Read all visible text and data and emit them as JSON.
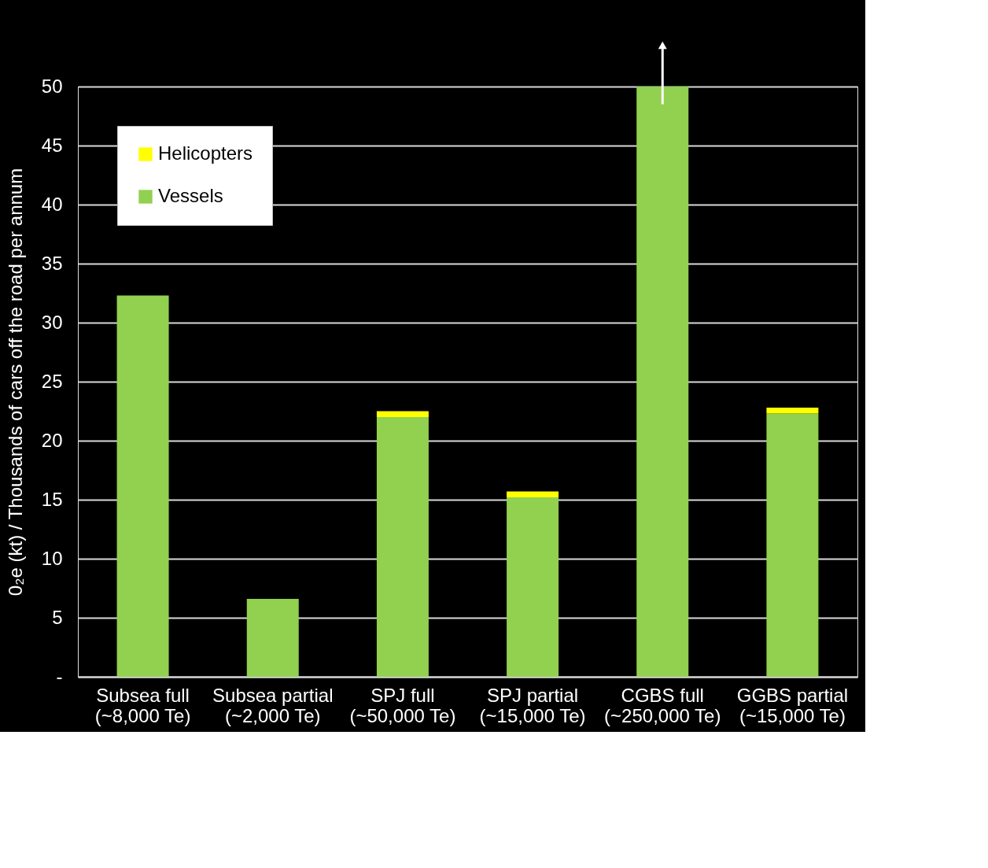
{
  "chart_data": {
    "type": "bar",
    "stacked": true,
    "ylabel": "0₂e (kt) / Thousands of cars off the road per annum",
    "categories": [
      "Subsea full\n(~8,000 Te)",
      "Subsea partial\n(~2,000 Te)",
      "SPJ full\n(~50,000 Te)",
      "SPJ partial\n(~15,000 Te)",
      "CGBS full\n(~250,000 Te)",
      "GGBS partial\n(~15,000 Te)"
    ],
    "series": [
      {
        "name": "Vessels",
        "color": "#92d050",
        "values": [
          32.3,
          6.6,
          22.0,
          15.2,
          50,
          22.3
        ]
      },
      {
        "name": "Helicopters",
        "color": "#ffff00",
        "values": [
          null,
          null,
          0.5,
          0.5,
          null,
          0.5
        ]
      }
    ],
    "ylim": [
      0,
      50
    ],
    "yticks": [
      {
        "value": 0,
        "label": "-"
      },
      5,
      10,
      15,
      20,
      25,
      30,
      35,
      40,
      45,
      50
    ],
    "grid": "y",
    "legend": "top left"
  }
}
